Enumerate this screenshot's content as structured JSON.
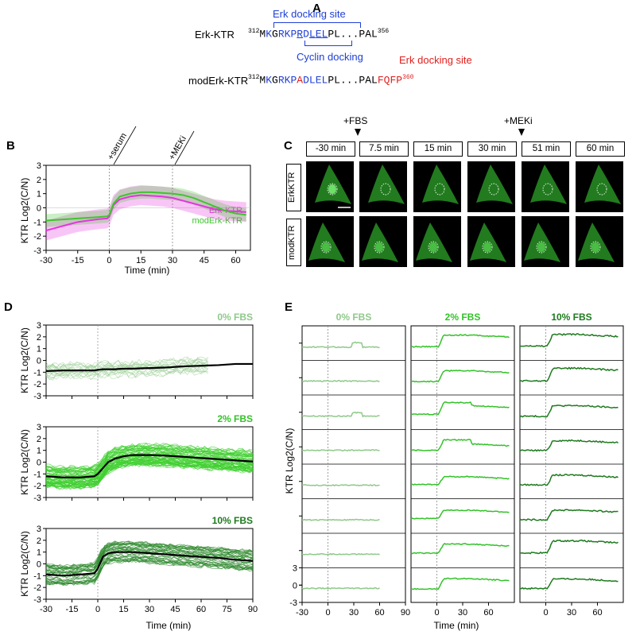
{
  "panelA": {
    "label": "A",
    "erk_name": "Erk-KTR",
    "erk_start": "312",
    "erk_seq": [
      "M",
      "K",
      "G",
      "R",
      "K",
      "P",
      "R",
      "D",
      "L",
      "E",
      "L",
      "P",
      "L",
      "...",
      "P",
      "A",
      "L"
    ],
    "erk_end": "356",
    "erk_docking": "Erk docking site",
    "cyclin_docking": "Cyclin docking",
    "mod_name": "modErk-KTR",
    "mod_start": "312",
    "mod_seq": [
      "M",
      "K",
      "G",
      "R",
      "K",
      "P",
      "A",
      "D",
      "L",
      "E",
      "L",
      "P",
      "L",
      "...",
      "P",
      "A",
      "L",
      "F",
      "Q",
      "F",
      "P"
    ],
    "mod_end": "360",
    "mod_docking": "Erk docking site",
    "colors": {
      "blue": "#1f3fd6",
      "red": "#e0201e"
    }
  },
  "panelB": {
    "label": "B",
    "ylabel": "KTR Log2(C/N)",
    "xlabel": "Time (min)",
    "ann_serum": "+serum",
    "ann_meki": "+MEKi",
    "legend": [
      "Erk-KTR",
      "modErk-KTR"
    ]
  },
  "panelC": {
    "label": "C",
    "ann_fbs": "+FBS",
    "ann_meki": "+MEKi",
    "times": [
      "-30 min",
      "7.5 min",
      "15 min",
      "30 min",
      "51 min",
      "60 min"
    ],
    "rows": [
      "ErkKTR",
      "modKTR"
    ]
  },
  "panelD": {
    "label": "D",
    "ylabel": "KTR Log2(C/N)",
    "xlabel": "Time (min)",
    "titles": [
      "0% FBS",
      "2% FBS",
      "10% FBS"
    ]
  },
  "panelE": {
    "label": "E",
    "ylabel": "KTR Log2(C/N)",
    "xlabel": "Time (min)",
    "titles": [
      "0% FBS",
      "2% FBS",
      "10% FBS"
    ]
  },
  "chart_data": [
    {
      "type": "line",
      "panel": "B",
      "x": [
        -30,
        -25,
        -20,
        -15,
        -10,
        -5,
        -1,
        0,
        2,
        5,
        10,
        15,
        20,
        25,
        30,
        35,
        40,
        45,
        50,
        55,
        60,
        65
      ],
      "series": [
        {
          "name": "Erk-KTR",
          "color": "#e633e0",
          "values": [
            -1.6,
            -1.4,
            -1.2,
            -1.0,
            -0.9,
            -0.8,
            -0.75,
            -0.6,
            0.2,
            0.6,
            0.8,
            0.9,
            0.85,
            0.8,
            0.7,
            0.5,
            0.3,
            0.1,
            -0.1,
            -0.2,
            -0.25,
            -0.3
          ]
        },
        {
          "name": "modErk-KTR",
          "color": "#3fc42f",
          "values": [
            -0.9,
            -0.85,
            -0.8,
            -0.75,
            -0.7,
            -0.65,
            -0.6,
            -0.5,
            0.3,
            0.8,
            1.0,
            1.1,
            1.1,
            1.05,
            1.0,
            0.9,
            0.7,
            0.4,
            0.1,
            -0.2,
            -0.4,
            -0.5
          ]
        }
      ],
      "xlim": [
        -30,
        67
      ],
      "ylim": [
        -3,
        3
      ],
      "xticks": [
        -30,
        -15,
        0,
        15,
        30,
        45,
        60
      ],
      "yticks": [
        3,
        2,
        1,
        0,
        -1,
        -2,
        -3
      ]
    },
    {
      "type": "line",
      "panel": "D",
      "xlim": [
        -30,
        90
      ],
      "ylim": [
        -3,
        3
      ],
      "xticks": [
        -30,
        -15,
        0,
        15,
        30,
        45,
        60,
        75,
        90
      ],
      "yticks": [
        3,
        2,
        1,
        0,
        -1,
        -2,
        -3
      ],
      "x": [
        -30,
        -20,
        -10,
        -2,
        0,
        3,
        6,
        10,
        15,
        20,
        30,
        40,
        50,
        60,
        70,
        80,
        90
      ],
      "series": [
        {
          "name": "0% FBS",
          "values": [
            -0.9,
            -0.85,
            -0.85,
            -0.85,
            -0.8,
            -0.75,
            -0.75,
            -0.75,
            -0.7,
            -0.7,
            -0.65,
            -0.6,
            -0.5,
            -0.45,
            -0.4,
            -0.3,
            -0.3
          ]
        },
        {
          "name": "2% FBS",
          "values": [
            -1.2,
            -1.3,
            -1.3,
            -1.2,
            -1.0,
            -0.5,
            0.0,
            0.3,
            0.5,
            0.6,
            0.6,
            0.55,
            0.45,
            0.35,
            0.25,
            0.15,
            0.05
          ]
        },
        {
          "name": "10% FBS",
          "values": [
            -0.9,
            -1.0,
            -0.9,
            -0.8,
            -0.4,
            0.6,
            0.9,
            1.0,
            1.0,
            1.0,
            0.9,
            0.8,
            0.7,
            0.6,
            0.5,
            0.35,
            0.25
          ]
        }
      ]
    },
    {
      "type": "line",
      "panel": "E",
      "xlim": [
        -30,
        90
      ],
      "ylim": [
        -3,
        3
      ],
      "xticks": [
        -30,
        0,
        30,
        60,
        90
      ],
      "yticks": [
        3,
        0,
        -3
      ],
      "columns": [
        "0% FBS",
        "2% FBS",
        "10% FBS"
      ],
      "colors": [
        "#8fc98a",
        "#34c22a",
        "#1e7a1e"
      ]
    }
  ]
}
